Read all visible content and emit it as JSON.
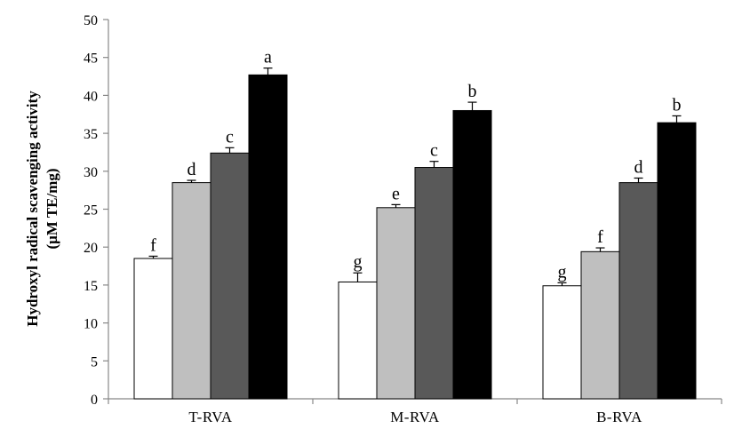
{
  "chart_data": {
    "type": "bar",
    "title": "",
    "xlabel": "",
    "ylabel_line1": "Hydroxyl radical scavenging activity",
    "ylabel_line2": "(μM TE/mg)",
    "ylim": [
      0,
      50
    ],
    "yticks": [
      0,
      5,
      10,
      15,
      20,
      25,
      30,
      35,
      40,
      45,
      50
    ],
    "categories": [
      "T-RVA",
      "M-RVA",
      "B-RVA"
    ],
    "series": [
      {
        "fill": "#ffffff",
        "values": [
          18.5,
          15.4,
          14.9
        ],
        "errors": [
          0.3,
          1.2,
          0.4
        ],
        "labels": [
          "f",
          "g",
          "g"
        ]
      },
      {
        "fill": "#bfbfbf",
        "values": [
          28.5,
          25.2,
          19.4
        ],
        "errors": [
          0.3,
          0.4,
          0.5
        ],
        "labels": [
          "d",
          "e",
          "f"
        ]
      },
      {
        "fill": "#595959",
        "values": [
          32.4,
          30.5,
          28.5
        ],
        "errors": [
          0.7,
          0.8,
          0.6
        ],
        "labels": [
          "c",
          "c",
          "d"
        ]
      },
      {
        "fill": "#000000",
        "values": [
          42.7,
          38.0,
          36.4
        ],
        "errors": [
          0.9,
          1.1,
          0.9
        ],
        "labels": [
          "a",
          "b",
          "b"
        ]
      }
    ],
    "grid": false,
    "legend": "none"
  }
}
